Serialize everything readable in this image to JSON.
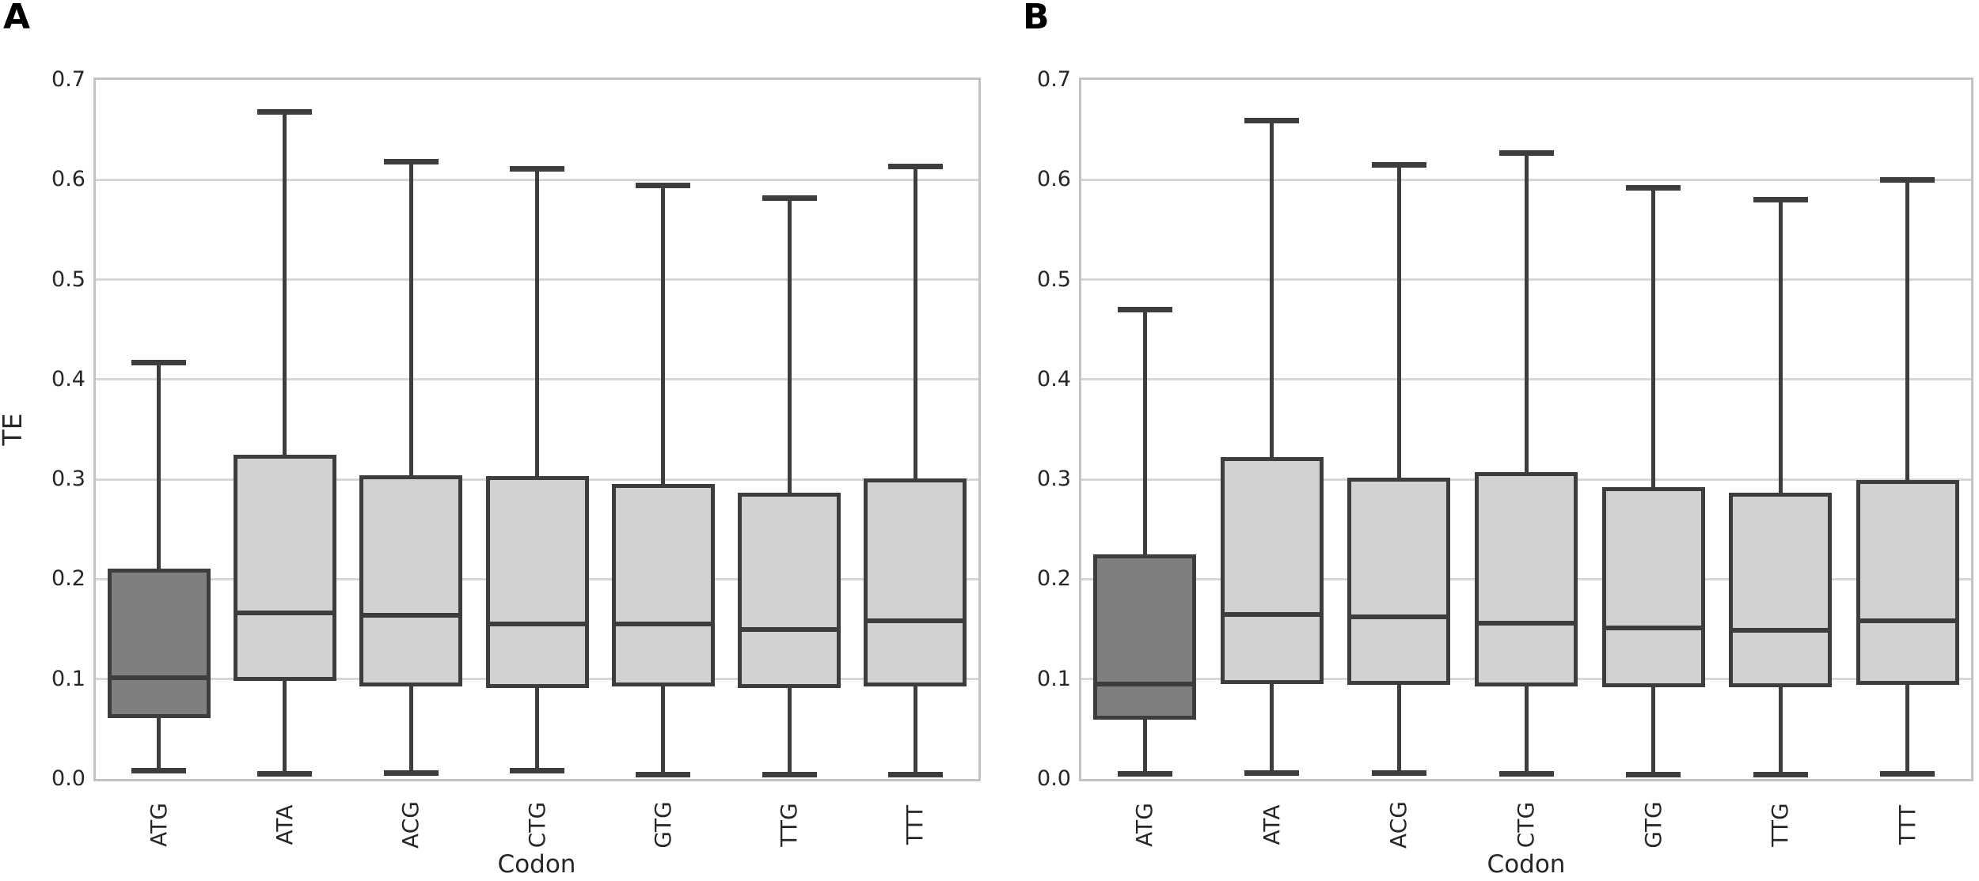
{
  "figure": {
    "background": "#ffffff",
    "text_color": "#262626",
    "frame_color": "#c3c3c3",
    "grid_color": "#d7d7d7",
    "box_line_color": "#3d3d3d",
    "box_fill_light": "#d2d2d2",
    "box_fill_dark": "#7f7f7f"
  },
  "chart_data": [
    {
      "type": "boxplot",
      "panel_label": "A",
      "title": "",
      "xlabel": "Codon",
      "ylabel": "TE",
      "ylim": [
        0.0,
        0.7
      ],
      "yticks": [
        0.0,
        0.1,
        0.2,
        0.3,
        0.4,
        0.5,
        0.6,
        0.7
      ],
      "yticklabels": [
        "0.0",
        "0.1",
        "0.2",
        "0.3",
        "0.4",
        "0.5",
        "0.6",
        "0.7"
      ],
      "grid": "horizontal",
      "legend": "none",
      "categories": [
        "ATG",
        "ATA",
        "ACG",
        "CTG",
        "GTG",
        "TTG",
        "TTT"
      ],
      "boxes": [
        {
          "category": "ATG",
          "whisker_low": 0.008,
          "q1": 0.061,
          "median": 0.101,
          "q3": 0.211,
          "whisker_high": 0.417,
          "fill": "#7f7f7f"
        },
        {
          "category": "ATA",
          "whisker_low": 0.005,
          "q1": 0.098,
          "median": 0.166,
          "q3": 0.325,
          "whisker_high": 0.668,
          "fill": "#d2d2d2"
        },
        {
          "category": "ACG",
          "whisker_low": 0.006,
          "q1": 0.093,
          "median": 0.164,
          "q3": 0.304,
          "whisker_high": 0.618,
          "fill": "#d2d2d2"
        },
        {
          "category": "CTG",
          "whisker_low": 0.008,
          "q1": 0.091,
          "median": 0.155,
          "q3": 0.303,
          "whisker_high": 0.611,
          "fill": "#d2d2d2"
        },
        {
          "category": "GTG",
          "whisker_low": 0.004,
          "q1": 0.093,
          "median": 0.155,
          "q3": 0.295,
          "whisker_high": 0.594,
          "fill": "#d2d2d2"
        },
        {
          "category": "TTG",
          "whisker_low": 0.004,
          "q1": 0.091,
          "median": 0.15,
          "q3": 0.287,
          "whisker_high": 0.582,
          "fill": "#d2d2d2"
        },
        {
          "category": "TTT",
          "whisker_low": 0.004,
          "q1": 0.093,
          "median": 0.158,
          "q3": 0.301,
          "whisker_high": 0.613,
          "fill": "#d2d2d2"
        }
      ]
    },
    {
      "type": "boxplot",
      "panel_label": "B",
      "title": "",
      "xlabel": "Codon",
      "ylabel": "",
      "ylim": [
        0.0,
        0.7
      ],
      "yticks": [
        0.0,
        0.1,
        0.2,
        0.3,
        0.4,
        0.5,
        0.6,
        0.7
      ],
      "yticklabels": [
        "0.0",
        "0.1",
        "0.2",
        "0.3",
        "0.4",
        "0.5",
        "0.6",
        "0.7"
      ],
      "grid": "horizontal",
      "legend": "none",
      "categories": [
        "ATG",
        "ATA",
        "ACG",
        "CTG",
        "GTG",
        "TTG",
        "TTT"
      ],
      "boxes": [
        {
          "category": "ATG",
          "whisker_low": 0.005,
          "q1": 0.059,
          "median": 0.095,
          "q3": 0.225,
          "whisker_high": 0.47,
          "fill": "#7f7f7f"
        },
        {
          "category": "ATA",
          "whisker_low": 0.006,
          "q1": 0.095,
          "median": 0.165,
          "q3": 0.322,
          "whisker_high": 0.659,
          "fill": "#d2d2d2"
        },
        {
          "category": "ACG",
          "whisker_low": 0.006,
          "q1": 0.094,
          "median": 0.162,
          "q3": 0.302,
          "whisker_high": 0.615,
          "fill": "#d2d2d2"
        },
        {
          "category": "CTG",
          "whisker_low": 0.005,
          "q1": 0.093,
          "median": 0.156,
          "q3": 0.307,
          "whisker_high": 0.627,
          "fill": "#d2d2d2"
        },
        {
          "category": "GTG",
          "whisker_low": 0.004,
          "q1": 0.092,
          "median": 0.151,
          "q3": 0.292,
          "whisker_high": 0.592,
          "fill": "#d2d2d2"
        },
        {
          "category": "TTG",
          "whisker_low": 0.004,
          "q1": 0.092,
          "median": 0.149,
          "q3": 0.287,
          "whisker_high": 0.58,
          "fill": "#d2d2d2"
        },
        {
          "category": "TTT",
          "whisker_low": 0.005,
          "q1": 0.094,
          "median": 0.158,
          "q3": 0.299,
          "whisker_high": 0.6,
          "fill": "#d2d2d2"
        }
      ]
    }
  ]
}
